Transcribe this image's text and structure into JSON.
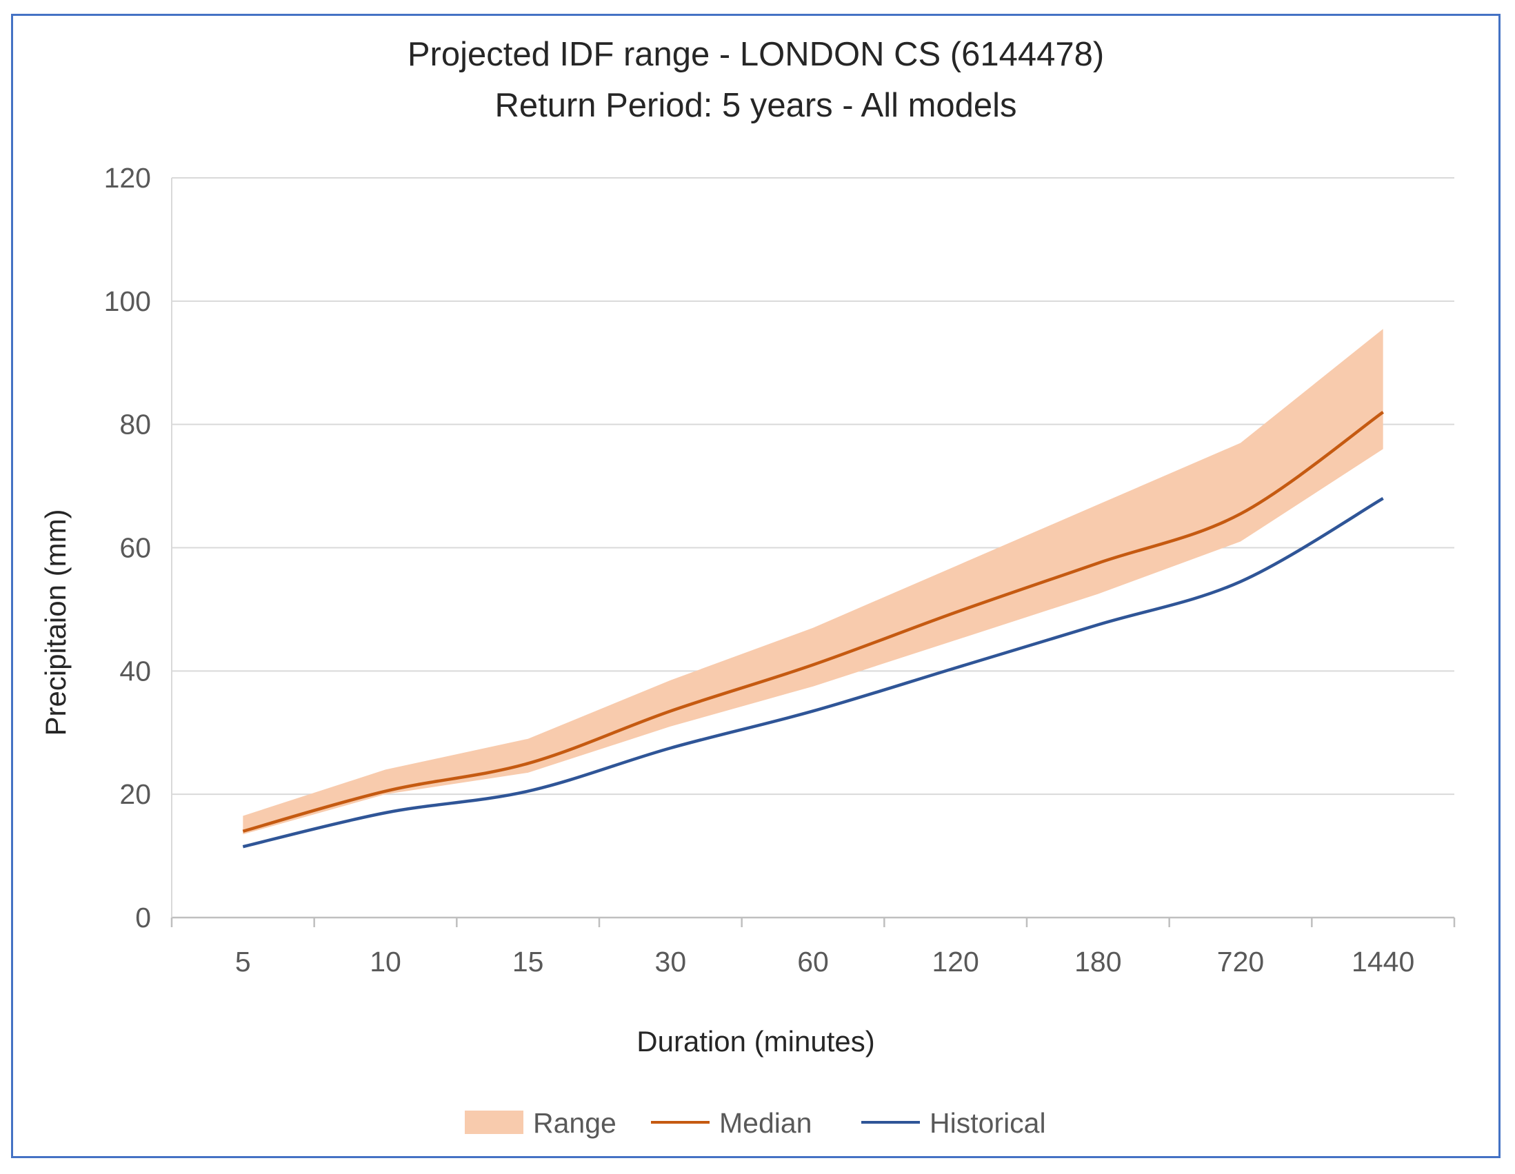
{
  "chart_data": {
    "type": "line",
    "title": [
      "Projected IDF range -   LONDON CS (6144478)",
      "Return Period: 5 years - All models"
    ],
    "xlabel": "Duration (minutes)",
    "ylabel": "Precipitaion (mm)",
    "categories": [
      "5",
      "10",
      "15",
      "30",
      "60",
      "120",
      "180",
      "720",
      "1440"
    ],
    "ylim": [
      0,
      120
    ],
    "yticks": [
      0,
      20,
      40,
      60,
      80,
      100,
      120
    ],
    "grid": true,
    "legend_position": "bottom",
    "series": [
      {
        "name": "Range",
        "kind": "band",
        "lower": [
          13.5,
          20.0,
          23.5,
          31.0,
          37.5,
          45.0,
          52.5,
          61.0,
          76.0
        ],
        "upper": [
          16.5,
          24.0,
          29.0,
          38.5,
          47.0,
          57.0,
          67.0,
          77.0,
          95.5
        ],
        "color": "#f8cbad"
      },
      {
        "name": "Median",
        "kind": "line",
        "values": [
          14.0,
          20.5,
          25.0,
          33.5,
          41.0,
          49.5,
          57.5,
          65.5,
          82.0
        ],
        "color": "#c55a11"
      },
      {
        "name": "Historical",
        "kind": "line",
        "values": [
          11.5,
          17.0,
          20.5,
          27.5,
          33.5,
          40.5,
          47.5,
          54.5,
          68.0
        ],
        "color": "#2f5597"
      }
    ]
  },
  "colors": {
    "frame_border": "#4472c4",
    "gridline": "#d9d9d9",
    "axis": "#bfbfbf"
  }
}
